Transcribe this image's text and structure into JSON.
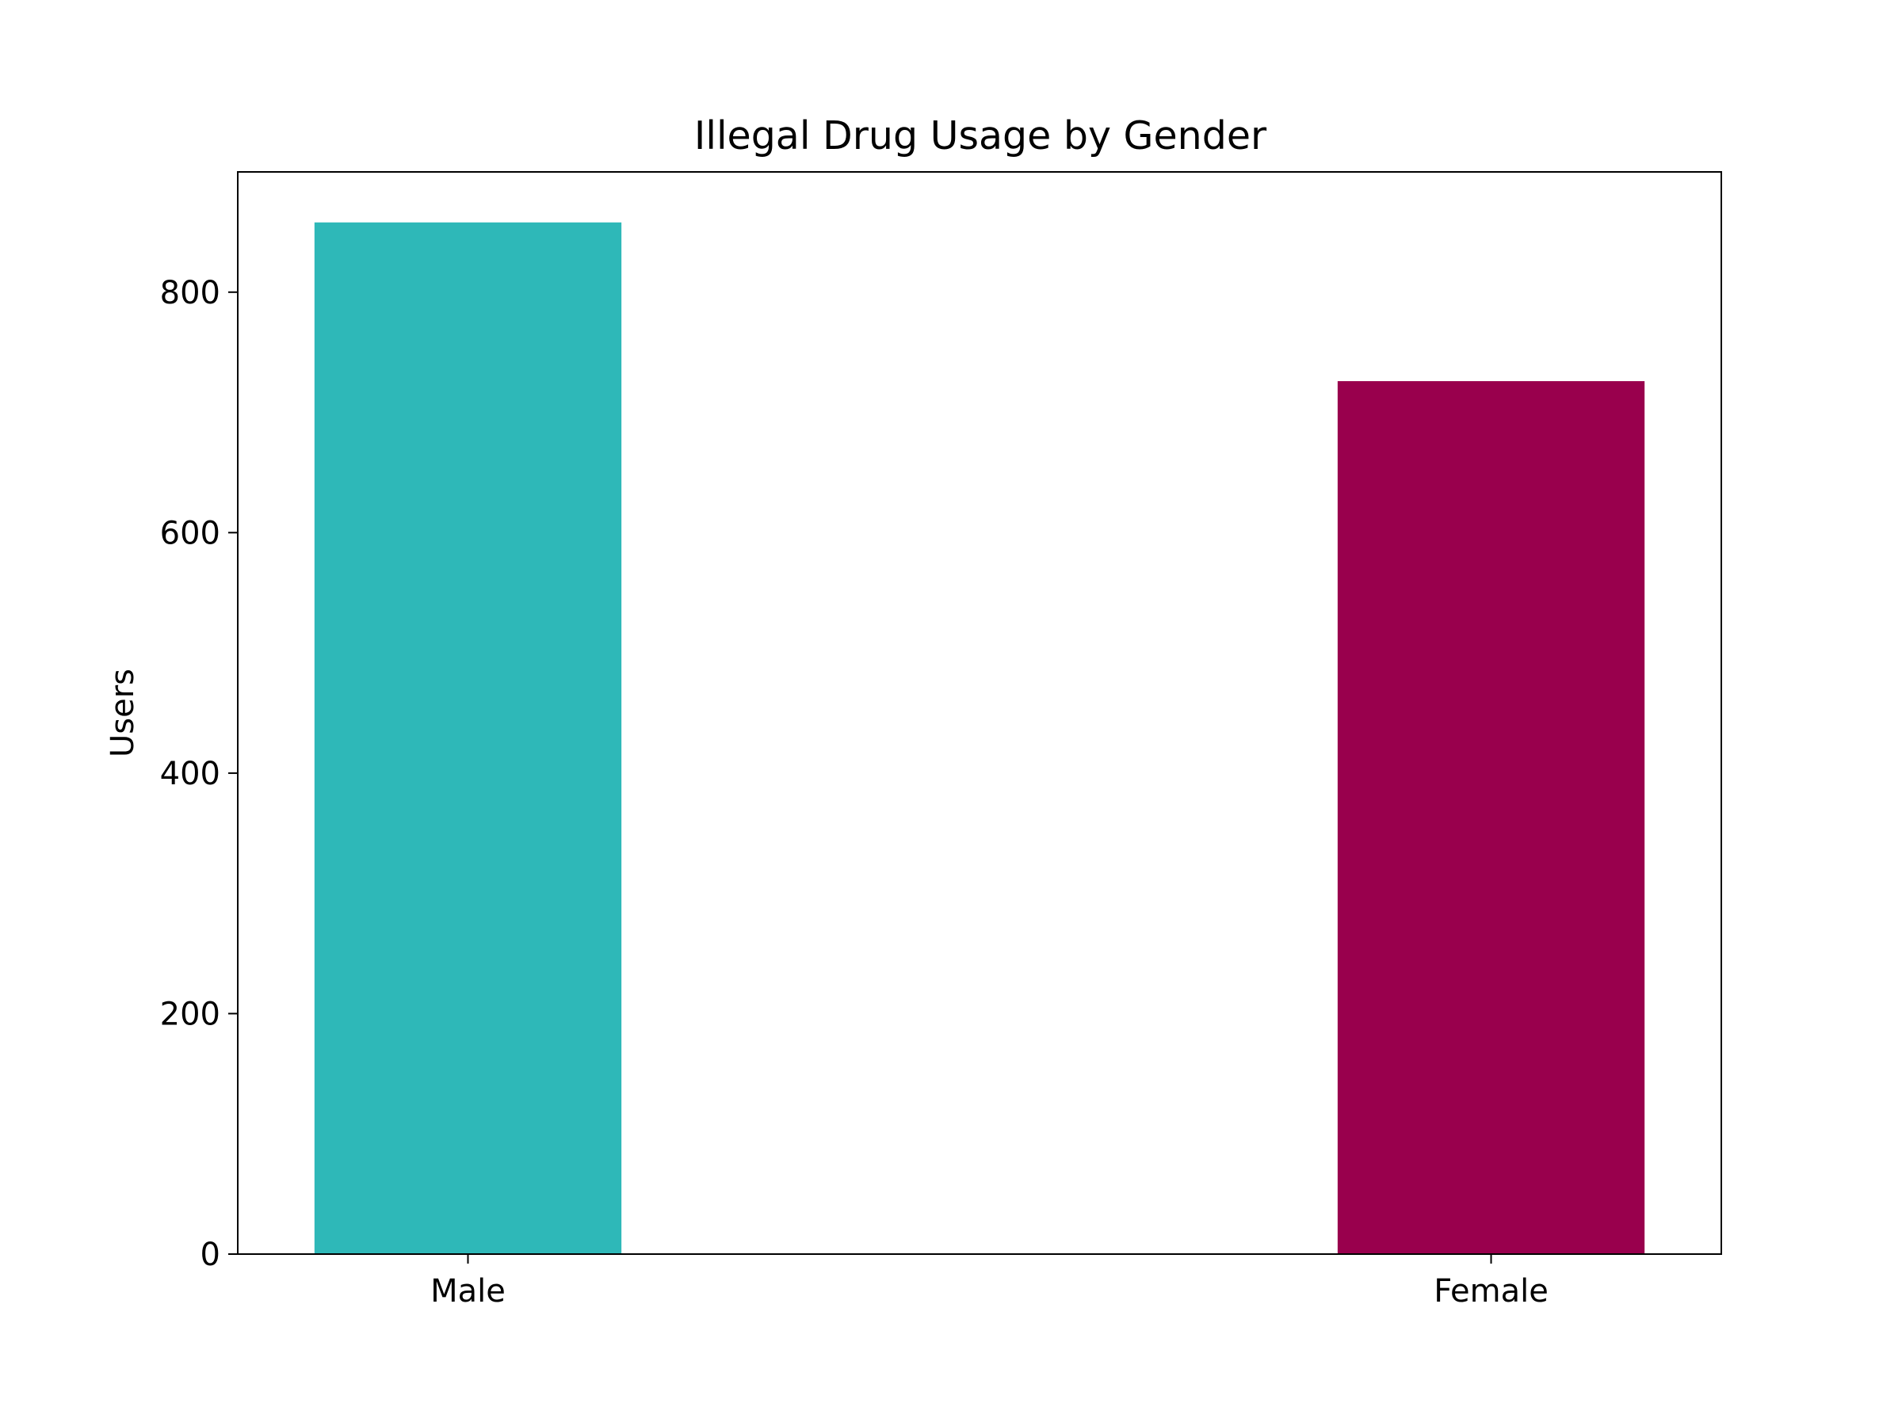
{
  "chart_data": {
    "type": "bar",
    "title": "Illegal Drug Usage by Gender",
    "xlabel": "",
    "ylabel": "Users",
    "categories": [
      "Male",
      "Female"
    ],
    "values": [
      858,
      726
    ],
    "colors": [
      "#2eb8b8",
      "#99004d"
    ],
    "ylim": [
      0,
      900
    ],
    "yticks": [
      0,
      200,
      400,
      600,
      800
    ],
    "grid": false,
    "legend": "none"
  }
}
